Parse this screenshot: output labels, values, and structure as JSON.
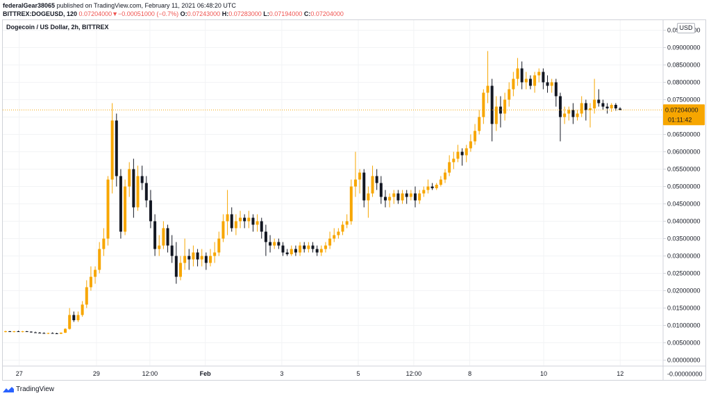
{
  "header": {
    "author": "federalGear38065",
    "published": " published on TradingView.com, February 11, 2021 06:48:20 UTC",
    "symbol": "BITTREX:DOGEUSD, 120",
    "last": "0.07204000",
    "change": "−0.00051000 (−0.7%)",
    "o_label": "O:",
    "o_value": "0.07243000",
    "h_label": "H:",
    "h_value": "0.07283000",
    "l_label": "L:",
    "l_value": "0.07194000",
    "c_label": "C:",
    "c_value": "0.07204000"
  },
  "chart_title": "Dogecoin / US Dollar, 2h, BITTREX",
  "currency": "USD",
  "footer": {
    "brand": "TradingView"
  },
  "colors": {
    "up": "#f7a600",
    "down": "#131722",
    "price_label_bg": "#f7a600",
    "grid": "#f2f3f5"
  },
  "chart_data": {
    "type": "candlestick",
    "title": "Dogecoin / US Dollar, 2h, BITTREX",
    "y_ticks": [
      "0.09500000",
      "0.09000000",
      "0.08500000",
      "0.08000000",
      "0.07500000",
      "0.07000000",
      "0.06500000",
      "0.06000000",
      "0.05500000",
      "0.05000000",
      "0.04500000",
      "0.04000000",
      "0.03500000",
      "0.03000000",
      "0.02500000",
      "0.02000000",
      "0.01500000",
      "0.01000000",
      "0.00500000",
      "0.00000000",
      "-0.00000000"
    ],
    "y_tick_values": [
      0.095,
      0.09,
      0.085,
      0.08,
      0.075,
      0.07,
      0.065,
      0.06,
      0.055,
      0.05,
      0.045,
      0.04,
      0.035,
      0.03,
      0.025,
      0.02,
      0.015,
      0.01,
      0.005,
      0.0
    ],
    "y_tick_bottom_label": "-0.00000000",
    "ylim": [
      -0.0005,
      0.0965
    ],
    "x_ticks": [
      {
        "label": "27",
        "pos": 0.025
      },
      {
        "label": "29",
        "pos": 0.142
      },
      {
        "label": "12:00",
        "pos": 0.223
      },
      {
        "label": "Feb",
        "pos": 0.307,
        "bold": true
      },
      {
        "label": "3",
        "pos": 0.423
      },
      {
        "label": "5",
        "pos": 0.539
      },
      {
        "label": "12:00",
        "pos": 0.623
      },
      {
        "label": "8",
        "pos": 0.708
      },
      {
        "label": "10",
        "pos": 0.82
      },
      {
        "label": "12",
        "pos": 0.936
      }
    ],
    "current_price": "0.07204000",
    "current_price_value": 0.07204,
    "countdown": "01:11:42",
    "ohlc": [
      [
        0.0082,
        0.0085,
        0.008,
        0.0083
      ],
      [
        0.0083,
        0.0084,
        0.0081,
        0.0082
      ],
      [
        0.0082,
        0.0084,
        0.008,
        0.0083
      ],
      [
        0.0083,
        0.0085,
        0.0081,
        0.0082
      ],
      [
        0.0082,
        0.0084,
        0.008,
        0.0083
      ],
      [
        0.0083,
        0.0084,
        0.0081,
        0.0082
      ],
      [
        0.0082,
        0.0083,
        0.0079,
        0.008
      ],
      [
        0.008,
        0.0082,
        0.0078,
        0.0079
      ],
      [
        0.0079,
        0.0081,
        0.0077,
        0.0078
      ],
      [
        0.0078,
        0.008,
        0.0076,
        0.0077
      ],
      [
        0.0077,
        0.0079,
        0.0075,
        0.0078
      ],
      [
        0.0078,
        0.008,
        0.0076,
        0.0077
      ],
      [
        0.0077,
        0.0079,
        0.0075,
        0.0076
      ],
      [
        0.0076,
        0.008,
        0.0075,
        0.0079
      ],
      [
        0.0079,
        0.0092,
        0.0078,
        0.009
      ],
      [
        0.009,
        0.015,
        0.0088,
        0.013
      ],
      [
        0.013,
        0.014,
        0.011,
        0.0115
      ],
      [
        0.0115,
        0.014,
        0.011,
        0.013
      ],
      [
        0.013,
        0.017,
        0.0125,
        0.016
      ],
      [
        0.016,
        0.023,
        0.015,
        0.021
      ],
      [
        0.021,
        0.027,
        0.02,
        0.024
      ],
      [
        0.024,
        0.027,
        0.022,
        0.026
      ],
      [
        0.026,
        0.034,
        0.025,
        0.032
      ],
      [
        0.032,
        0.038,
        0.03,
        0.035
      ],
      [
        0.035,
        0.053,
        0.033,
        0.052
      ],
      [
        0.052,
        0.074,
        0.048,
        0.069
      ],
      [
        0.069,
        0.071,
        0.05,
        0.053
      ],
      [
        0.053,
        0.055,
        0.035,
        0.037
      ],
      [
        0.037,
        0.052,
        0.036,
        0.05
      ],
      [
        0.05,
        0.057,
        0.047,
        0.055
      ],
      [
        0.055,
        0.058,
        0.041,
        0.044
      ],
      [
        0.044,
        0.056,
        0.043,
        0.053
      ],
      [
        0.053,
        0.056,
        0.049,
        0.051
      ],
      [
        0.051,
        0.053,
        0.044,
        0.046
      ],
      [
        0.046,
        0.049,
        0.038,
        0.04
      ],
      [
        0.04,
        0.042,
        0.03,
        0.032
      ],
      [
        0.032,
        0.036,
        0.03,
        0.033
      ],
      [
        0.033,
        0.04,
        0.032,
        0.038
      ],
      [
        0.038,
        0.039,
        0.031,
        0.033
      ],
      [
        0.033,
        0.036,
        0.028,
        0.03
      ],
      [
        0.03,
        0.034,
        0.022,
        0.024
      ],
      [
        0.024,
        0.03,
        0.023,
        0.028
      ],
      [
        0.028,
        0.035,
        0.026,
        0.03
      ],
      [
        0.03,
        0.032,
        0.026,
        0.029
      ],
      [
        0.029,
        0.033,
        0.027,
        0.031
      ],
      [
        0.031,
        0.032,
        0.027,
        0.029
      ],
      [
        0.029,
        0.032,
        0.027,
        0.03
      ],
      [
        0.03,
        0.031,
        0.026,
        0.028
      ],
      [
        0.028,
        0.032,
        0.027,
        0.03
      ],
      [
        0.03,
        0.034,
        0.028,
        0.031
      ],
      [
        0.031,
        0.037,
        0.03,
        0.035
      ],
      [
        0.035,
        0.042,
        0.034,
        0.04
      ],
      [
        0.04,
        0.049,
        0.036,
        0.042
      ],
      [
        0.042,
        0.044,
        0.037,
        0.038
      ],
      [
        0.038,
        0.042,
        0.036,
        0.04
      ],
      [
        0.04,
        0.043,
        0.038,
        0.041
      ],
      [
        0.041,
        0.042,
        0.038,
        0.04
      ],
      [
        0.04,
        0.043,
        0.038,
        0.041
      ],
      [
        0.041,
        0.042,
        0.037,
        0.039
      ],
      [
        0.039,
        0.042,
        0.037,
        0.04
      ],
      [
        0.04,
        0.041,
        0.035,
        0.037
      ],
      [
        0.037,
        0.039,
        0.03,
        0.034
      ],
      [
        0.034,
        0.036,
        0.031,
        0.033
      ],
      [
        0.033,
        0.035,
        0.032,
        0.034
      ],
      [
        0.034,
        0.035,
        0.032,
        0.033
      ],
      [
        0.033,
        0.034,
        0.03,
        0.031
      ],
      [
        0.031,
        0.032,
        0.03,
        0.0305
      ],
      [
        0.0305,
        0.033,
        0.03,
        0.032
      ],
      [
        0.032,
        0.033,
        0.03,
        0.031
      ],
      [
        0.031,
        0.034,
        0.03,
        0.033
      ],
      [
        0.033,
        0.034,
        0.031,
        0.032
      ],
      [
        0.032,
        0.034,
        0.031,
        0.033
      ],
      [
        0.033,
        0.034,
        0.031,
        0.032
      ],
      [
        0.032,
        0.033,
        0.03,
        0.031
      ],
      [
        0.031,
        0.033,
        0.03,
        0.032
      ],
      [
        0.032,
        0.034,
        0.031,
        0.033
      ],
      [
        0.033,
        0.037,
        0.032,
        0.035
      ],
      [
        0.035,
        0.038,
        0.034,
        0.036
      ],
      [
        0.036,
        0.038,
        0.035,
        0.037
      ],
      [
        0.037,
        0.04,
        0.036,
        0.039
      ],
      [
        0.039,
        0.042,
        0.038,
        0.04
      ],
      [
        0.04,
        0.052,
        0.039,
        0.05
      ],
      [
        0.05,
        0.06,
        0.047,
        0.052
      ],
      [
        0.052,
        0.055,
        0.048,
        0.054
      ],
      [
        0.054,
        0.055,
        0.044,
        0.046
      ],
      [
        0.046,
        0.05,
        0.041,
        0.048
      ],
      [
        0.048,
        0.056,
        0.047,
        0.053
      ],
      [
        0.053,
        0.055,
        0.049,
        0.051
      ],
      [
        0.051,
        0.053,
        0.045,
        0.047
      ],
      [
        0.047,
        0.049,
        0.044,
        0.046
      ],
      [
        0.046,
        0.048,
        0.044,
        0.047
      ],
      [
        0.047,
        0.049,
        0.045,
        0.048
      ],
      [
        0.048,
        0.049,
        0.045,
        0.046
      ],
      [
        0.046,
        0.049,
        0.045,
        0.048
      ],
      [
        0.048,
        0.049,
        0.045,
        0.047
      ],
      [
        0.047,
        0.049,
        0.046,
        0.048
      ],
      [
        0.048,
        0.05,
        0.044,
        0.046
      ],
      [
        0.046,
        0.049,
        0.045,
        0.048
      ],
      [
        0.048,
        0.05,
        0.047,
        0.049
      ],
      [
        0.049,
        0.052,
        0.048,
        0.05
      ],
      [
        0.05,
        0.051,
        0.049,
        0.0495
      ],
      [
        0.0495,
        0.051,
        0.049,
        0.0505
      ],
      [
        0.0505,
        0.053,
        0.05,
        0.052
      ],
      [
        0.052,
        0.055,
        0.051,
        0.054
      ],
      [
        0.054,
        0.059,
        0.053,
        0.057
      ],
      [
        0.057,
        0.06,
        0.055,
        0.058
      ],
      [
        0.058,
        0.062,
        0.057,
        0.06
      ],
      [
        0.06,
        0.061,
        0.056,
        0.059
      ],
      [
        0.059,
        0.062,
        0.057,
        0.061
      ],
      [
        0.061,
        0.065,
        0.06,
        0.063
      ],
      [
        0.063,
        0.068,
        0.062,
        0.066
      ],
      [
        0.066,
        0.072,
        0.065,
        0.07
      ],
      [
        0.07,
        0.078,
        0.068,
        0.077
      ],
      [
        0.077,
        0.089,
        0.074,
        0.079
      ],
      [
        0.079,
        0.081,
        0.063,
        0.068
      ],
      [
        0.068,
        0.076,
        0.066,
        0.073
      ],
      [
        0.073,
        0.076,
        0.067,
        0.071
      ],
      [
        0.071,
        0.077,
        0.069,
        0.075
      ],
      [
        0.075,
        0.08,
        0.073,
        0.078
      ],
      [
        0.078,
        0.083,
        0.076,
        0.081
      ],
      [
        0.081,
        0.087,
        0.079,
        0.084
      ],
      [
        0.084,
        0.086,
        0.078,
        0.08
      ],
      [
        0.08,
        0.083,
        0.078,
        0.081
      ],
      [
        0.081,
        0.082,
        0.078,
        0.079
      ],
      [
        0.079,
        0.083,
        0.077,
        0.082
      ],
      [
        0.082,
        0.084,
        0.08,
        0.083
      ],
      [
        0.083,
        0.084,
        0.078,
        0.08
      ],
      [
        0.08,
        0.082,
        0.077,
        0.079
      ],
      [
        0.079,
        0.081,
        0.077,
        0.08
      ],
      [
        0.08,
        0.081,
        0.073,
        0.076
      ],
      [
        0.076,
        0.077,
        0.063,
        0.07
      ],
      [
        0.07,
        0.073,
        0.068,
        0.071
      ],
      [
        0.071,
        0.073,
        0.069,
        0.072
      ],
      [
        0.072,
        0.074,
        0.068,
        0.07
      ],
      [
        0.07,
        0.072,
        0.069,
        0.071
      ],
      [
        0.071,
        0.076,
        0.07,
        0.074
      ],
      [
        0.074,
        0.075,
        0.069,
        0.072
      ],
      [
        0.072,
        0.074,
        0.067,
        0.0725
      ],
      [
        0.0725,
        0.081,
        0.071,
        0.075
      ],
      [
        0.075,
        0.078,
        0.073,
        0.074
      ],
      [
        0.074,
        0.075,
        0.072,
        0.073
      ],
      [
        0.073,
        0.074,
        0.071,
        0.0725
      ],
      [
        0.0725,
        0.074,
        0.0715,
        0.0735
      ],
      [
        0.0735,
        0.074,
        0.0718,
        0.0725
      ],
      [
        0.07243,
        0.07283,
        0.07194,
        0.07204
      ]
    ]
  }
}
